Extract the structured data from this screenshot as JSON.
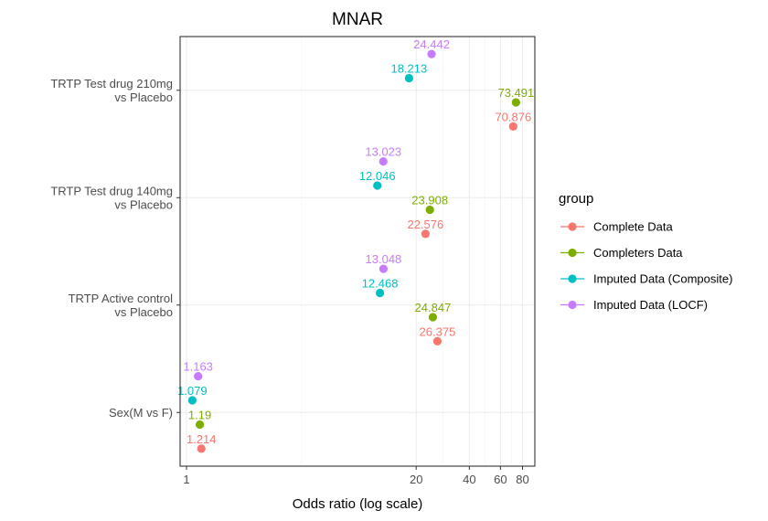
{
  "chart_data": {
    "type": "scatter",
    "title": "MNAR",
    "xlabel": "Odds ratio (log scale)",
    "ylabel": "",
    "x_scale": "log",
    "xlim": [
      0.92,
      94
    ],
    "x_ticks": [
      1,
      20,
      40,
      60,
      80
    ],
    "x_tick_labels": [
      "1",
      "20",
      "40",
      "60",
      "80"
    ],
    "categories": [
      "TRTP Test drug 210mg\nvs Placebo",
      "TRTP Test drug 140mg\nvs Placebo",
      "TRTP Active control\nvs Placebo",
      "Sex(M vs F)"
    ],
    "legend": {
      "title": "group",
      "placement": "right"
    },
    "series": [
      {
        "name": "Complete Data",
        "color": "#F8766D",
        "values": [
          70.876,
          22.576,
          26.375,
          1.214
        ],
        "labels": [
          "70.876",
          "22.576",
          "26.375",
          "1.214"
        ]
      },
      {
        "name": "Completers Data",
        "color": "#7CAE00",
        "values": [
          73.491,
          23.908,
          24.847,
          1.19
        ],
        "labels": [
          "73.491",
          "23.908",
          "24.847",
          "1.19"
        ]
      },
      {
        "name": "Imputed Data (Composite)",
        "color": "#00BFC4",
        "values": [
          18.213,
          12.046,
          12.468,
          1.079
        ],
        "labels": [
          "18.213",
          "12.046",
          "12.468",
          "1.079"
        ]
      },
      {
        "name": "Imputed Data (LOCF)",
        "color": "#C77CFF",
        "values": [
          24.442,
          13.023,
          13.048,
          1.163
        ],
        "labels": [
          "24.442",
          "13.023",
          "13.048",
          "1.163"
        ]
      }
    ]
  }
}
